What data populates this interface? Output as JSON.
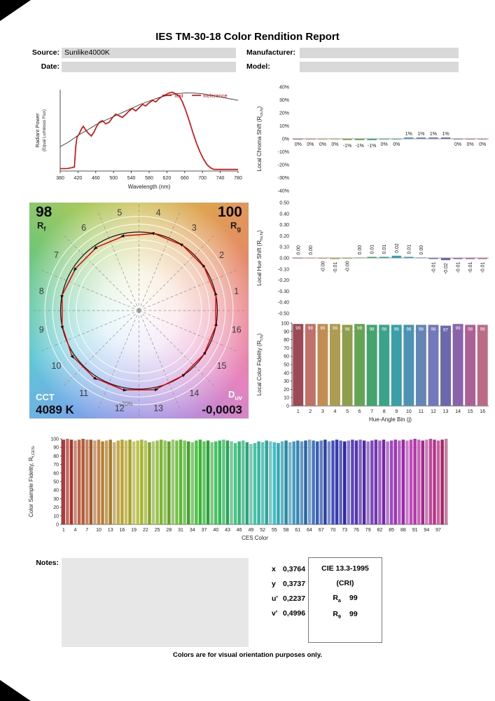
{
  "page": {
    "title": "IES TM-30-18 Color Rendition Report",
    "footer": "Colors are for visual orientation purposes only."
  },
  "form": {
    "source_label": "Source:",
    "source_value": "Sunlike4000K",
    "manufacturer_label": "Manufacturer:",
    "manufacturer_value": "",
    "date_label": "Date:",
    "date_value": "",
    "model_label": "Model:",
    "model_value": ""
  },
  "notes": {
    "label": "Notes:",
    "value": ""
  },
  "chromaticity": {
    "rows": [
      {
        "label": "x",
        "value": "0,3764"
      },
      {
        "label": "y",
        "value": "0,3737"
      },
      {
        "label": "u'",
        "value": "0,2237"
      },
      {
        "label": "v'",
        "value": "0,4996"
      }
    ]
  },
  "cie": {
    "title": "CIE 13.3-1995",
    "subtitle": "(CRI)",
    "ra_label": "R",
    "ra_sub": "a",
    "ra_value": "99",
    "r9_label": "R",
    "r9_sub": "9",
    "r9_value": "99"
  },
  "cvg": {
    "rf_value": "98",
    "rf_label": "R",
    "rf_sub": "f",
    "rg_value": "100",
    "rg_label": "R",
    "rg_sub": "g",
    "cct_label": "CCT",
    "cct_value": "4089 K",
    "duv_label": "D",
    "duv_sub": "uv",
    "duv_value": "-0,0003",
    "plus20_label": "+20%",
    "bins": [
      1,
      2,
      3,
      4,
      5,
      6,
      7,
      8,
      9,
      10,
      11,
      12,
      13,
      14,
      15,
      16
    ]
  },
  "hue_bin_colors": [
    "#9d4a57",
    "#c2706a",
    "#c28d53",
    "#ae9c52",
    "#8f9d4e",
    "#66a455",
    "#45a46d",
    "#3aa38a",
    "#38a0a6",
    "#4c92b2",
    "#6486b6",
    "#7278ba",
    "#6b68ac",
    "#8b63aa",
    "#ab6097",
    "#bb6b86"
  ],
  "chart_data": [
    {
      "id": "spd",
      "type": "line",
      "xlabel": "Wavelength (nm)",
      "ylabel_line1": "Radiant Power",
      "ylabel_line2": "(Equal Luminous Flux)",
      "xlim": [
        380,
        780
      ],
      "xticks": [
        380,
        420,
        460,
        500,
        540,
        580,
        620,
        660,
        700,
        740,
        780
      ],
      "legend_color": "#e30000",
      "series": [
        {
          "name": "Test",
          "color": "#e30000",
          "stroke_width": 1.6,
          "x": [
            380,
            395,
            405,
            412,
            415,
            418,
            422,
            428,
            432,
            438,
            444,
            450,
            456,
            462,
            468,
            475,
            482,
            490,
            498,
            505,
            512,
            520,
            528,
            535,
            542,
            550,
            558,
            565,
            572,
            580,
            588,
            595,
            602,
            610,
            618,
            625,
            632,
            640,
            648,
            655,
            662,
            670,
            678,
            686,
            694,
            702,
            710,
            718,
            726,
            740,
            760,
            780
          ],
          "y": [
            0.03,
            0.03,
            0.04,
            0.05,
            0.3,
            0.42,
            0.45,
            0.52,
            0.55,
            0.5,
            0.46,
            0.43,
            0.48,
            0.55,
            0.6,
            0.62,
            0.58,
            0.6,
            0.66,
            0.7,
            0.68,
            0.66,
            0.7,
            0.74,
            0.77,
            0.74,
            0.78,
            0.82,
            0.8,
            0.84,
            0.87,
            0.85,
            0.89,
            0.92,
            0.94,
            0.96,
            0.97,
            0.95,
            0.92,
            0.85,
            0.75,
            0.62,
            0.48,
            0.35,
            0.24,
            0.15,
            0.08,
            0.04,
            0.02,
            0.02,
            0.02,
            0.02
          ]
        },
        {
          "name": "Reference",
          "color": "#4a4a4a",
          "stroke_width": 1,
          "x": [
            380,
            400,
            420,
            440,
            460,
            480,
            500,
            520,
            540,
            560,
            580,
            600,
            620,
            640,
            660,
            680,
            700,
            720,
            740,
            760,
            780
          ],
          "y": [
            0.3,
            0.36,
            0.44,
            0.5,
            0.57,
            0.62,
            0.67,
            0.72,
            0.77,
            0.82,
            0.86,
            0.9,
            0.93,
            0.95,
            0.96,
            0.96,
            0.95,
            0.93,
            0.91,
            0.89,
            0.87
          ]
        }
      ]
    },
    {
      "id": "chroma_shift",
      "type": "bar",
      "ylabel": "Local Chroma Shift (R_{cs,hj})",
      "ylim": [
        -40,
        40
      ],
      "yticks": [
        {
          "v": 40,
          "label": "40%"
        },
        {
          "v": 30,
          "label": "30%"
        },
        {
          "v": 20,
          "label": "20%"
        },
        {
          "v": 10,
          "label": "10%"
        },
        {
          "v": 0,
          "label": "0%"
        },
        {
          "v": -10,
          "label": "-10%"
        },
        {
          "v": -20,
          "label": "-20%"
        },
        {
          "v": -30,
          "label": "-30%"
        },
        {
          "v": -40,
          "label": "-40%"
        }
      ],
      "categories": [
        1,
        2,
        3,
        4,
        5,
        6,
        7,
        8,
        9,
        10,
        11,
        12,
        13,
        14,
        15,
        16
      ],
      "values": [
        0,
        0,
        0,
        0,
        -1,
        -1,
        -1,
        0,
        0,
        1,
        1,
        1,
        1,
        0,
        0,
        0
      ],
      "labels": [
        "0%",
        "0%",
        "0%",
        "0%",
        "-1%",
        "-1%",
        "-1%",
        "0%",
        "0%",
        "1%",
        "1%",
        "1%",
        "1%",
        "0%",
        "0%",
        "0%"
      ]
    },
    {
      "id": "hue_shift",
      "type": "bar",
      "ylabel": "Local Hue Shift (R_{hs,hj})",
      "ylim": [
        -0.5,
        0.5
      ],
      "yticks": [
        {
          "v": 0.5,
          "label": "0.50"
        },
        {
          "v": 0.4,
          "label": "0.40"
        },
        {
          "v": 0.3,
          "label": "0.30"
        },
        {
          "v": 0.2,
          "label": "0.20"
        },
        {
          "v": 0.1,
          "label": "0.10"
        },
        {
          "v": 0,
          "label": "0.00"
        },
        {
          "v": -0.1,
          "label": "-0.10"
        },
        {
          "v": -0.2,
          "label": "-0.20"
        },
        {
          "v": -0.3,
          "label": "-0.30"
        },
        {
          "v": -0.4,
          "label": "-0.40"
        },
        {
          "v": -0.5,
          "label": "-0.50"
        }
      ],
      "categories": [
        1,
        2,
        3,
        4,
        5,
        6,
        7,
        8,
        9,
        10,
        11,
        12,
        13,
        14,
        15,
        16
      ],
      "values": [
        0.002,
        0.002,
        -0.002,
        -0.01,
        -0.002,
        0.004,
        0.01,
        0.01,
        0.02,
        0.01,
        0.004,
        -0.01,
        -0.02,
        -0.01,
        -0.01,
        -0.01
      ],
      "labels": [
        "0.00",
        "0.00",
        "-0.00",
        "-0.01",
        "-0.00",
        "0.00",
        "0.01",
        "0.01",
        "0.02",
        "0.01",
        "0.00",
        "-0.01",
        "-0.02",
        "-0.01",
        "-0.01",
        "-0.01"
      ]
    },
    {
      "id": "local_fidelity",
      "type": "bar",
      "ylabel": "Local Color Fidelity (R_{f,hj})",
      "xlabel": "Hue-Angle Bin (j)",
      "ylim": [
        0,
        100
      ],
      "yticks": [
        0,
        10,
        20,
        30,
        40,
        50,
        60,
        70,
        80,
        90,
        100
      ],
      "categories": [
        1,
        2,
        3,
        4,
        5,
        6,
        7,
        8,
        9,
        10,
        11,
        12,
        13,
        14,
        15,
        16
      ],
      "xtick_labels": [
        1,
        2,
        3,
        4,
        5,
        6,
        7,
        8,
        9,
        10,
        11,
        12,
        13,
        14,
        15,
        16
      ],
      "values": [
        99,
        99,
        99,
        99,
        98,
        99,
        98,
        98,
        98,
        98,
        98,
        98,
        97,
        99,
        98,
        98
      ]
    },
    {
      "id": "ces_fidelity",
      "type": "bar",
      "ylabel": "Color Sample Fidelity, R_{f,CESi}",
      "xlabel": "CES Color",
      "ylim": [
        0,
        100
      ],
      "yticks": [
        0,
        10,
        20,
        30,
        40,
        50,
        60,
        70,
        80,
        90,
        100
      ],
      "xtick_labels": [
        1,
        4,
        7,
        10,
        13,
        16,
        19,
        22,
        25,
        28,
        31,
        34,
        37,
        40,
        43,
        46,
        49,
        52,
        55,
        58,
        61,
        64,
        67,
        70,
        73,
        76,
        79,
        82,
        85,
        88,
        91,
        94,
        97
      ],
      "values": [
        99,
        100,
        99,
        98,
        99,
        100,
        99,
        99,
        98,
        99,
        97,
        98,
        99,
        96,
        98,
        99,
        98,
        99,
        97,
        98,
        99,
        98,
        96,
        97,
        98,
        99,
        98,
        97,
        99,
        98,
        99,
        98,
        97,
        96,
        98,
        99,
        97,
        98,
        96,
        97,
        98,
        99,
        98,
        97,
        95,
        97,
        98,
        96,
        94,
        95,
        97,
        96,
        98,
        97,
        96,
        95,
        97,
        98,
        96,
        97,
        98,
        97,
        98,
        99,
        98,
        97,
        98,
        99,
        97,
        98,
        99,
        98,
        97,
        98,
        99,
        98,
        99,
        98,
        97,
        98,
        99,
        98,
        99,
        97,
        98,
        99,
        98,
        99,
        98,
        99,
        100,
        99,
        98,
        99,
        100,
        99,
        98,
        99,
        100
      ]
    }
  ]
}
